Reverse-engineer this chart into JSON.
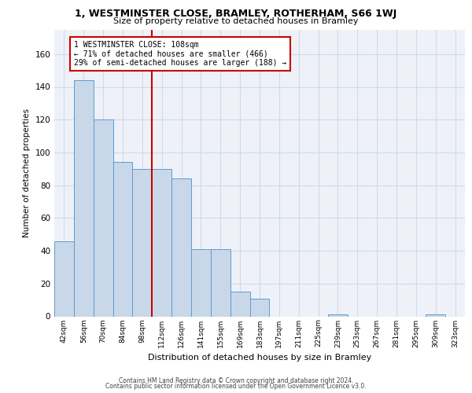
{
  "title": "1, WESTMINSTER CLOSE, BRAMLEY, ROTHERHAM, S66 1WJ",
  "subtitle": "Size of property relative to detached houses in Bramley",
  "xlabel": "Distribution of detached houses by size in Bramley",
  "ylabel": "Number of detached properties",
  "bar_labels": [
    "42sqm",
    "56sqm",
    "70sqm",
    "84sqm",
    "98sqm",
    "112sqm",
    "126sqm",
    "141sqm",
    "155sqm",
    "169sqm",
    "183sqm",
    "197sqm",
    "211sqm",
    "225sqm",
    "239sqm",
    "253sqm",
    "267sqm",
    "281sqm",
    "295sqm",
    "309sqm",
    "323sqm"
  ],
  "bar_values": [
    46,
    144,
    120,
    94,
    90,
    90,
    84,
    41,
    41,
    15,
    11,
    0,
    0,
    0,
    1,
    0,
    0,
    0,
    0,
    1,
    0
  ],
  "property_label": "1 WESTMINSTER CLOSE: 108sqm",
  "pct_smaller": 71,
  "n_smaller": 466,
  "pct_larger_semi": 29,
  "n_larger_semi": 188,
  "bar_color": "#c8d8e8",
  "bar_edge_color": "#5b9bd5",
  "vline_color": "#cc0000",
  "annotation_box_color": "#cc0000",
  "grid_color": "#d0d8e8",
  "background_color": "#eef2f8",
  "ylim": [
    0,
    175
  ],
  "yticks": [
    0,
    20,
    40,
    60,
    80,
    100,
    120,
    140,
    160
  ],
  "footer1": "Contains HM Land Registry data © Crown copyright and database right 2024.",
  "footer2": "Contains public sector information licensed under the Open Government Licence v3.0."
}
